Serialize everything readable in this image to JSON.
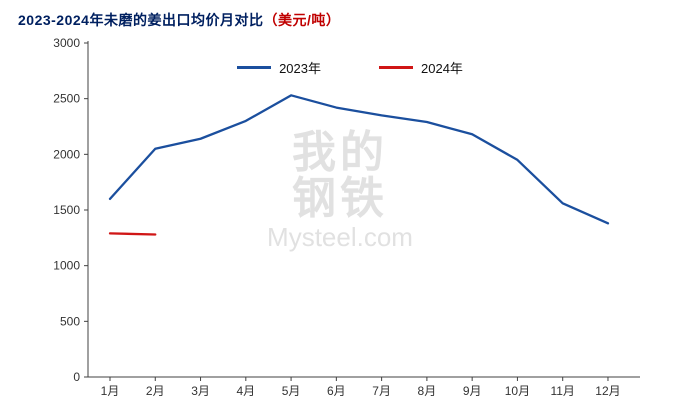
{
  "header": {
    "title_main": "2023-2024年未磨的姜出口均价月对比",
    "title_unit": "（美元/吨）"
  },
  "watermark": {
    "line1": "我的",
    "line2": "钢铁",
    "line3": "Mysteel.com"
  },
  "chart_data": {
    "type": "line",
    "title": "2023-2024年未磨的姜出口均价月对比（美元/吨）",
    "categories": [
      "1月",
      "2月",
      "3月",
      "4月",
      "5月",
      "6月",
      "7月",
      "8月",
      "9月",
      "10月",
      "11月",
      "12月"
    ],
    "series": [
      {
        "name": "2023年",
        "color": "#1b4f9e",
        "values": [
          1600,
          2050,
          2140,
          2300,
          2530,
          2420,
          2350,
          2290,
          2180,
          1950,
          1560,
          1380
        ]
      },
      {
        "name": "2024年",
        "color": "#d01616",
        "values": [
          1290,
          1280,
          null,
          null,
          null,
          null,
          null,
          null,
          null,
          null,
          null,
          null
        ]
      }
    ],
    "xlabel": "",
    "ylabel": "",
    "ylim": [
      0,
      3000
    ],
    "yticks": [
      0,
      500,
      1000,
      1500,
      2000,
      2500,
      3000
    ],
    "grid": false,
    "legend_position": "top-center",
    "axis_color": "#404040"
  }
}
